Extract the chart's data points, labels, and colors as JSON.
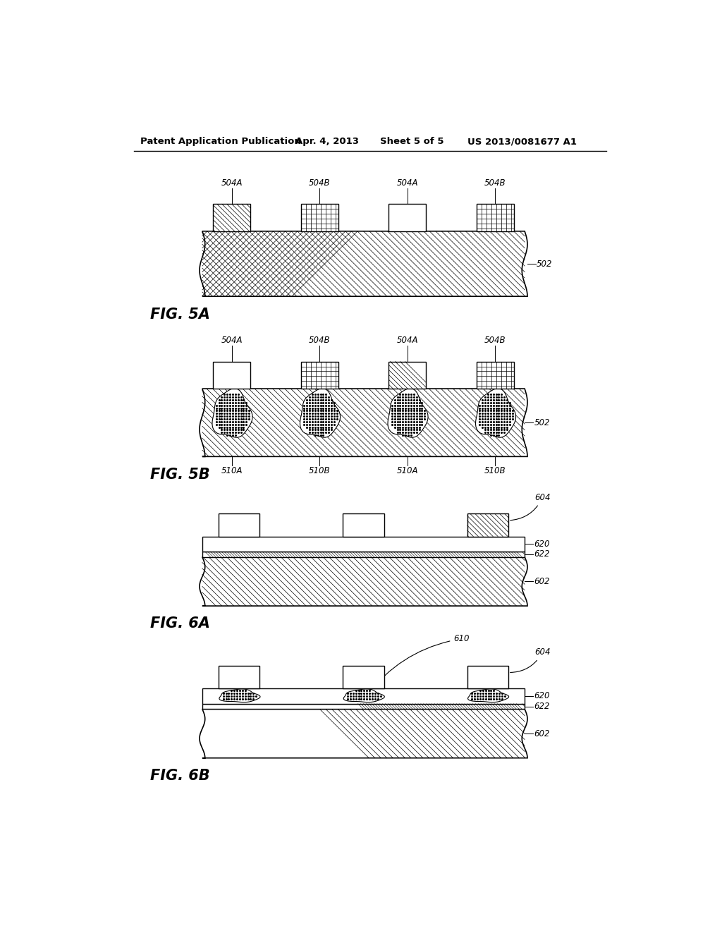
{
  "bg_color": "#ffffff",
  "header_text": "Patent Application Publication",
  "header_date": "Apr. 4, 2013",
  "header_sheet": "Sheet 5 of 5",
  "header_patent": "US 2013/0081677 A1",
  "fig5a_label": "FIG. 5A",
  "fig5b_label": "FIG. 5B",
  "fig6a_label": "FIG. 6A",
  "fig6b_label": "FIG. 6B"
}
